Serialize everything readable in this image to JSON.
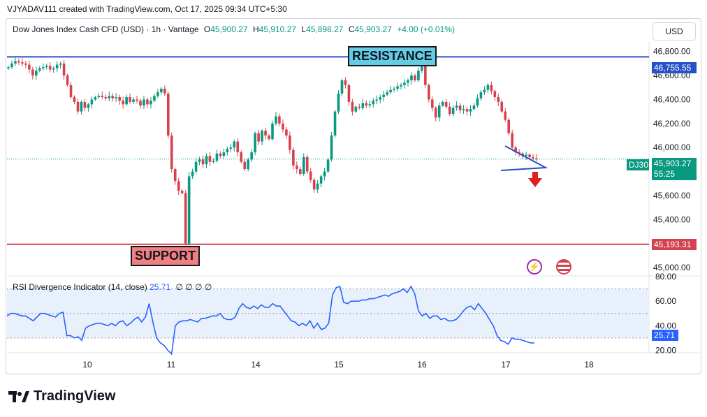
{
  "header": {
    "credit": "VJYADAV111 created with TradingView.com, Oct 17, 2025 09:34 UTC+5:30"
  },
  "legend": {
    "symbol": "Dow Jones Index Cash CFD (USD) · 1h · Vantage",
    "o_label": "O",
    "o_value": "45,900.27",
    "h_label": "H",
    "h_value": "45,910.27",
    "l_label": "L",
    "l_value": "45,898.27",
    "c_label": "C",
    "c_value": "45,903.27",
    "change": "+4.00 (+0.01%)"
  },
  "currency_button": "USD",
  "annotations": {
    "resistance": "RESISTANCE",
    "support": "SUPPORT",
    "resistance_price": "46,755.55",
    "support_price": "45,193.31",
    "symbol_tag": "DJ30",
    "last_price": "45,903.27",
    "countdown": "55:25"
  },
  "rsi": {
    "title": "RSI Divergence Indicator (14, close)",
    "value": "25.71",
    "extras": "∅ ∅ ∅ ∅",
    "tag": "25.71"
  },
  "footer": {
    "brand": "TradingView"
  },
  "icons": [
    "flash-icon",
    "us-flag-icon",
    "tradingview-logo-icon"
  ],
  "colors": {
    "up": "#089981",
    "down": "#d5424f",
    "resistance": "#2750c8",
    "support": "#d5424f",
    "rsi": "#2962ff",
    "rsi_band": "#e8f1fb",
    "resistance_label_bg": "#63cde4",
    "support_label_bg": "#f08080"
  },
  "chart_data": [
    {
      "type": "candlestick",
      "title": "Dow Jones Index Cash CFD (USD) · 1h · Vantage",
      "x_ticks": [
        "10",
        "11",
        "14",
        "15",
        "16",
        "17",
        "18"
      ],
      "y_ticks": [
        46800,
        46600,
        46400,
        46200,
        46000,
        45800,
        45600,
        45400,
        45200,
        45000
      ],
      "y_tick_labels": [
        "46,800.00",
        "46,600.00",
        "46,400.00",
        "46,200.00",
        "46,000.00",
        "45,800.00",
        "45,600.00",
        "45,400.00",
        "45,200.00",
        "45,000.00"
      ],
      "ylim": [
        44930,
        46880
      ],
      "horizontal_lines": [
        {
          "name": "RESISTANCE",
          "value": 46755.55
        },
        {
          "name": "SUPPORT",
          "value": 45193.31
        }
      ],
      "last_price": 45903.27,
      "close_series": [
        46670,
        46700,
        46720,
        46710,
        46700,
        46690,
        46650,
        46600,
        46640,
        46660,
        46670,
        46680,
        46650,
        46660,
        46690,
        46700,
        46600,
        46520,
        46420,
        46380,
        46300,
        46380,
        46330,
        46360,
        46400,
        46420,
        46430,
        46420,
        46410,
        46430,
        46410,
        46420,
        46390,
        46360,
        46420,
        46380,
        46400,
        46390,
        46350,
        46400,
        46360,
        46390,
        46430,
        46460,
        46490,
        46450,
        46100,
        45820,
        45720,
        45640,
        45620,
        45200,
        45760,
        45800,
        45880,
        45900,
        45860,
        45930,
        45880,
        45890,
        45950,
        45930,
        45960,
        45990,
        46000,
        46050,
        45960,
        45880,
        45820,
        45900,
        45960,
        46120,
        46050,
        46140,
        46100,
        46070,
        46200,
        46260,
        46200,
        46150,
        46100,
        45980,
        45850,
        45820,
        45780,
        45920,
        45800,
        45730,
        45650,
        45700,
        45760,
        45800,
        45900,
        46100,
        46300,
        46450,
        46560,
        46520,
        46380,
        46300,
        46340,
        46330,
        46370,
        46350,
        46360,
        46390,
        46400,
        46420,
        46440,
        46460,
        46480,
        46490,
        46510,
        46520,
        46540,
        46560,
        46600,
        46560,
        46640,
        46700,
        46520,
        46400,
        46330,
        46250,
        46350,
        46380,
        46340,
        46280,
        46330,
        46350,
        46310,
        46320,
        46300,
        46320,
        46350,
        46410,
        46460,
        46480,
        46520,
        46470,
        46420,
        46380,
        46300,
        46230,
        46120,
        46000,
        45960,
        45950,
        45930,
        45940,
        45920,
        45910,
        45903
      ]
    },
    {
      "type": "line",
      "title": "RSI Divergence Indicator (14, close)",
      "y_ticks": [
        80,
        60,
        40,
        20
      ],
      "y_tick_labels": [
        "80.00",
        "60.00",
        "40.00",
        "20.00"
      ],
      "ylim": [
        18,
        80
      ],
      "band": [
        30,
        70
      ],
      "midline": 50,
      "last_value": 25.71,
      "values": [
        48,
        50,
        50,
        49,
        48,
        48,
        46,
        44,
        47,
        50,
        50,
        49,
        48,
        47,
        50,
        51,
        32,
        32,
        30,
        31,
        28,
        38,
        40,
        41,
        42,
        42,
        41,
        40,
        42,
        40,
        43,
        44,
        40,
        42,
        45,
        47,
        43,
        47,
        58,
        43,
        30,
        26,
        24,
        20,
        17,
        40,
        43,
        44,
        44,
        45,
        44,
        43,
        46,
        46,
        47,
        48,
        48,
        50,
        46,
        45,
        45,
        47,
        54,
        58,
        55,
        54,
        56,
        54,
        57,
        55,
        55,
        58,
        56,
        56,
        52,
        48,
        44,
        43,
        40,
        42,
        40,
        44,
        38,
        42,
        37,
        38,
        42,
        65,
        71,
        72,
        59,
        58,
        60,
        60,
        60,
        61,
        61,
        62,
        62,
        63,
        64,
        65,
        64,
        66,
        67,
        68,
        70,
        67,
        72,
        66,
        52,
        48,
        50,
        46,
        48,
        48,
        45,
        46,
        44,
        44,
        45,
        48,
        52,
        55,
        56,
        53,
        58,
        54,
        50,
        45,
        40,
        32,
        28,
        27,
        25,
        30,
        29,
        29,
        28,
        27,
        26,
        26
      ]
    }
  ]
}
